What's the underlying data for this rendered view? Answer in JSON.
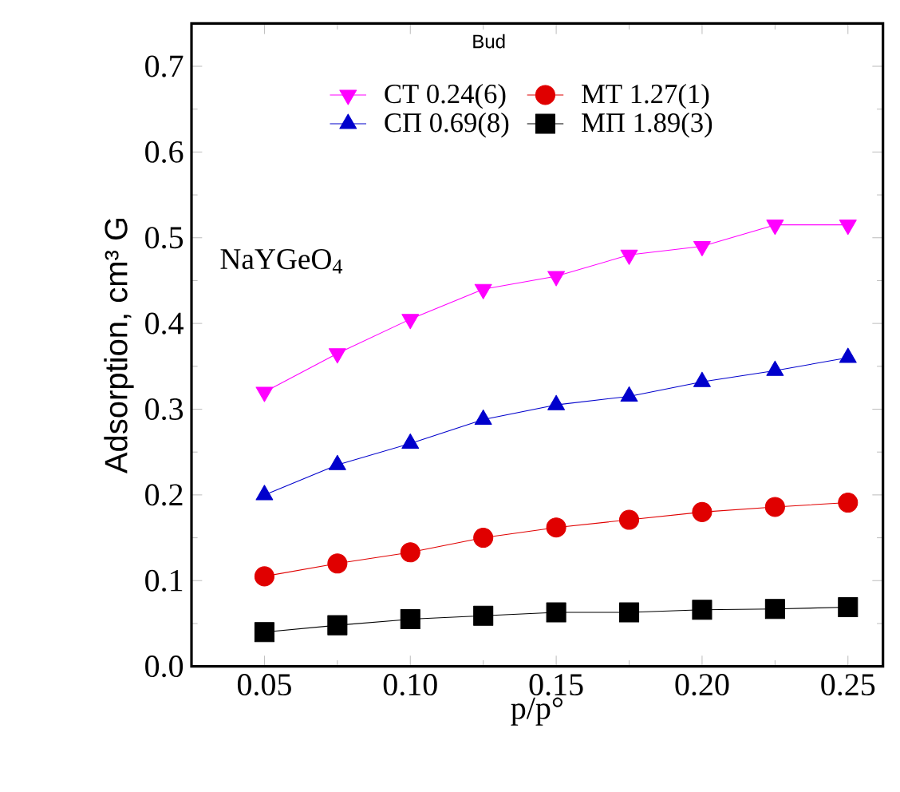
{
  "chart_data": {
    "type": "line",
    "xlabel": "p/p°",
    "ylabel": "Adsorption, cm³ G",
    "x": [
      0.05,
      0.075,
      0.1,
      0.125,
      0.15,
      0.175,
      0.2,
      0.225,
      0.25
    ],
    "series": [
      {
        "name": "СТ   0.24(6)",
        "color": "#ff00ff",
        "marker": "triangle down",
        "values": [
          0.32,
          0.365,
          0.405,
          0.44,
          0.455,
          0.48,
          0.49,
          0.515,
          0.515
        ]
      },
      {
        "name": "МТ   1.27(1)",
        "color": "#e00000",
        "marker": "circle",
        "values": [
          0.105,
          0.12,
          0.133,
          0.15,
          0.162,
          0.171,
          0.18,
          0.186,
          0.191
        ]
      },
      {
        "name": "СП   0.69(8)",
        "color": "#0000cc",
        "marker": "triangle",
        "values": [
          0.2,
          0.235,
          0.26,
          0.288,
          0.305,
          0.315,
          0.332,
          0.345,
          0.36
        ]
      },
      {
        "name": "МП   1.89(3)",
        "color": "#000000",
        "marker": "square",
        "values": [
          0.04,
          0.048,
          0.055,
          0.059,
          0.063,
          0.063,
          0.066,
          0.067,
          0.069
        ]
      }
    ],
    "xlim": [
      0.025,
      0.262
    ],
    "ylim": [
      0,
      0.75
    ],
    "xticks": [
      {
        "value": 0.05,
        "label": "0.05"
      },
      {
        "value": 0.1,
        "label": "0.10"
      },
      {
        "value": 0.15,
        "label": "0.15"
      },
      {
        "value": 0.2,
        "label": "0.20"
      },
      {
        "value": 0.25,
        "label": "0.25"
      }
    ],
    "yticks": [
      {
        "value": 0,
        "label": "0.0"
      },
      0.1,
      0.2,
      0.3,
      0.4,
      0.5,
      0.6,
      0.7
    ],
    "legend": "top",
    "grid": false,
    "line_style": "solid",
    "annotations": [
      "Bud",
      "NaYGeO$_{4}$"
    ]
  }
}
